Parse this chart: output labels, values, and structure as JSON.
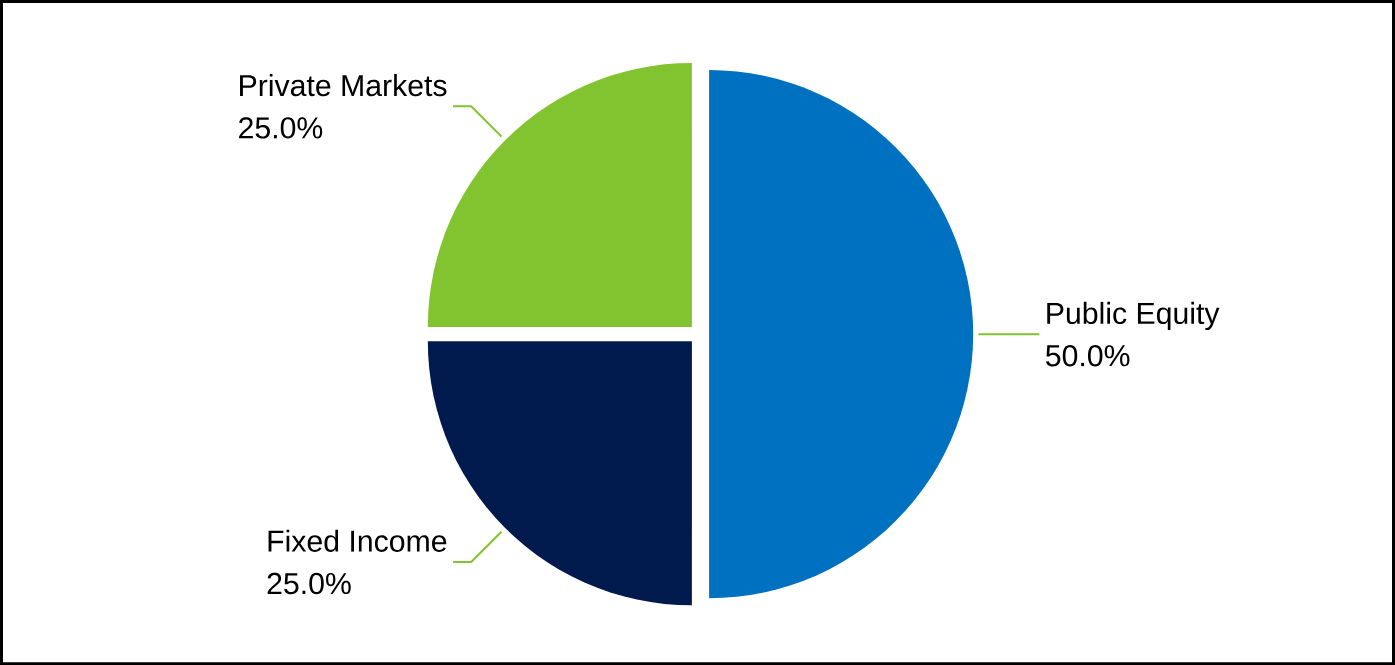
{
  "chart_data": {
    "type": "pie",
    "categories": [
      "Public Equity",
      "Fixed Income",
      "Private Markets"
    ],
    "values": [
      50,
      25,
      25
    ],
    "colors": [
      "#0070c0",
      "#001a4d",
      "#82c42f"
    ],
    "value_labels": [
      "50.0%",
      "25.0%",
      "25.0%"
    ]
  }
}
